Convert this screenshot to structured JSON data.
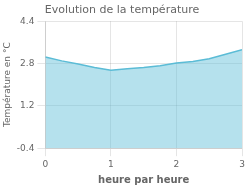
{
  "chart_data": {
    "type": "area",
    "title": "Evolution de la température",
    "xlabel": "heure par heure",
    "ylabel": "Température en °C",
    "x": [
      0,
      0.25,
      0.5,
      0.75,
      1.0,
      1.25,
      1.5,
      1.75,
      2.0,
      2.25,
      2.5,
      2.75,
      3.0
    ],
    "values": [
      3.05,
      2.9,
      2.78,
      2.65,
      2.55,
      2.6,
      2.65,
      2.72,
      2.82,
      2.88,
      2.98,
      3.15,
      3.32
    ],
    "color": "#5bbcd6",
    "xlim": [
      0,
      3
    ],
    "xticks": [
      0,
      1,
      2,
      3
    ],
    "ylim": [
      -0.4,
      4.4
    ],
    "yticks": [
      -0.4,
      1.2,
      2.8,
      4.4
    ],
    "grid": true
  }
}
